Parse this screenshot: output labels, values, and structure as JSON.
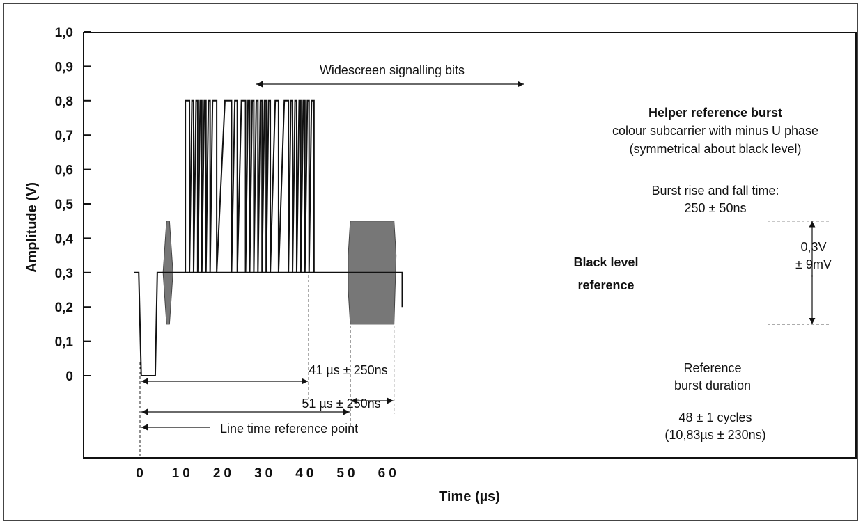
{
  "chart_data": {
    "type": "line",
    "title": "",
    "xlabel": "Time (µs)",
    "ylabel": "Amplitude (V)",
    "xlim": [
      -3,
      68
    ],
    "ylim": [
      -0.24,
      1.0
    ],
    "y_ticks": [
      {
        "value": 1.0,
        "label": "1,0"
      },
      {
        "value": 0.9,
        "label": "0,9"
      },
      {
        "value": 0.8,
        "label": "0,8"
      },
      {
        "value": 0.7,
        "label": "0,7"
      },
      {
        "value": 0.6,
        "label": "0,6"
      },
      {
        "value": 0.5,
        "label": "0,5"
      },
      {
        "value": 0.4,
        "label": "0,4"
      },
      {
        "value": 0.3,
        "label": "0,3"
      },
      {
        "value": 0.2,
        "label": "0,2"
      },
      {
        "value": 0.1,
        "label": "0,1"
      },
      {
        "value": 0.0,
        "label": "0"
      }
    ],
    "x_ticks": [
      {
        "value": 0,
        "label": "0"
      },
      {
        "value": 10,
        "label": "10"
      },
      {
        "value": 20,
        "label": "20"
      },
      {
        "value": 30,
        "label": "30"
      },
      {
        "value": 40,
        "label": "40"
      },
      {
        "value": 50,
        "label": "50"
      },
      {
        "value": 60,
        "label": "60"
      }
    ],
    "grid": false,
    "waveform": {
      "x": [
        -1.5,
        -0.3,
        0.3,
        3.7,
        4.2,
        5.0,
        63.6,
        63.6
      ],
      "y": [
        0.3,
        0.3,
        0.0,
        0.0,
        0.3,
        0.3,
        0.3,
        0.2
      ]
    },
    "black_level": 0.3,
    "colour_burst": {
      "start": 5.6,
      "end": 8.0,
      "top": 0.45,
      "bottom": 0.15
    },
    "wss_bits": {
      "high": 0.8,
      "low": 0.3,
      "pulses": [
        [
          11.0,
          12.0
        ],
        [
          12.6,
          13.0
        ],
        [
          13.6,
          14.0
        ],
        [
          14.6,
          15.0
        ],
        [
          15.6,
          16.0
        ],
        [
          16.6,
          17.0
        ],
        [
          17.6,
          18.6
        ],
        [
          20.6,
          22.2
        ],
        [
          23.0,
          23.6
        ],
        [
          24.6,
          25.6
        ],
        [
          26.2,
          26.6
        ],
        [
          27.2,
          27.6
        ],
        [
          28.2,
          28.6
        ],
        [
          29.2,
          29.6
        ],
        [
          30.2,
          30.6
        ],
        [
          31.2,
          31.6
        ],
        [
          32.8,
          33.6
        ],
        [
          35.0,
          36.0
        ],
        [
          36.6,
          37.0
        ],
        [
          37.6,
          38.0
        ],
        [
          38.6,
          39.0
        ],
        [
          39.6,
          40.0
        ],
        [
          40.6,
          41.0
        ],
        [
          41.6,
          42.2
        ]
      ]
    },
    "reference_burst": {
      "start": 51.0,
      "end": 61.6,
      "top": 0.45,
      "bottom": 0.15,
      "edge": 0.35
    },
    "annotations": {
      "wss_label": "Widescreen signalling bits",
      "helper_title": "Helper reference burst",
      "helper_line1": "colour subcarrier with minus U phase",
      "helper_line2": "(symmetrical about black level)",
      "rise_fall_line1": "Burst rise and fall time:",
      "rise_fall_line2": "250 ± 50ns",
      "black_level_line1": "Black level",
      "black_level_line2": "reference",
      "amp_line1": "0,3V",
      "amp_line2": "± 9mV",
      "dur_41": "41 µs ± 250ns",
      "dur_51": "51 µs ± 250ns",
      "line_ref": "Line time reference point",
      "ref_dur_line1": "Reference",
      "ref_dur_line2": "burst duration",
      "cycles_line1": "48 ± 1 cycles",
      "cycles_line2": "(10,83µs ± 230ns)"
    }
  }
}
